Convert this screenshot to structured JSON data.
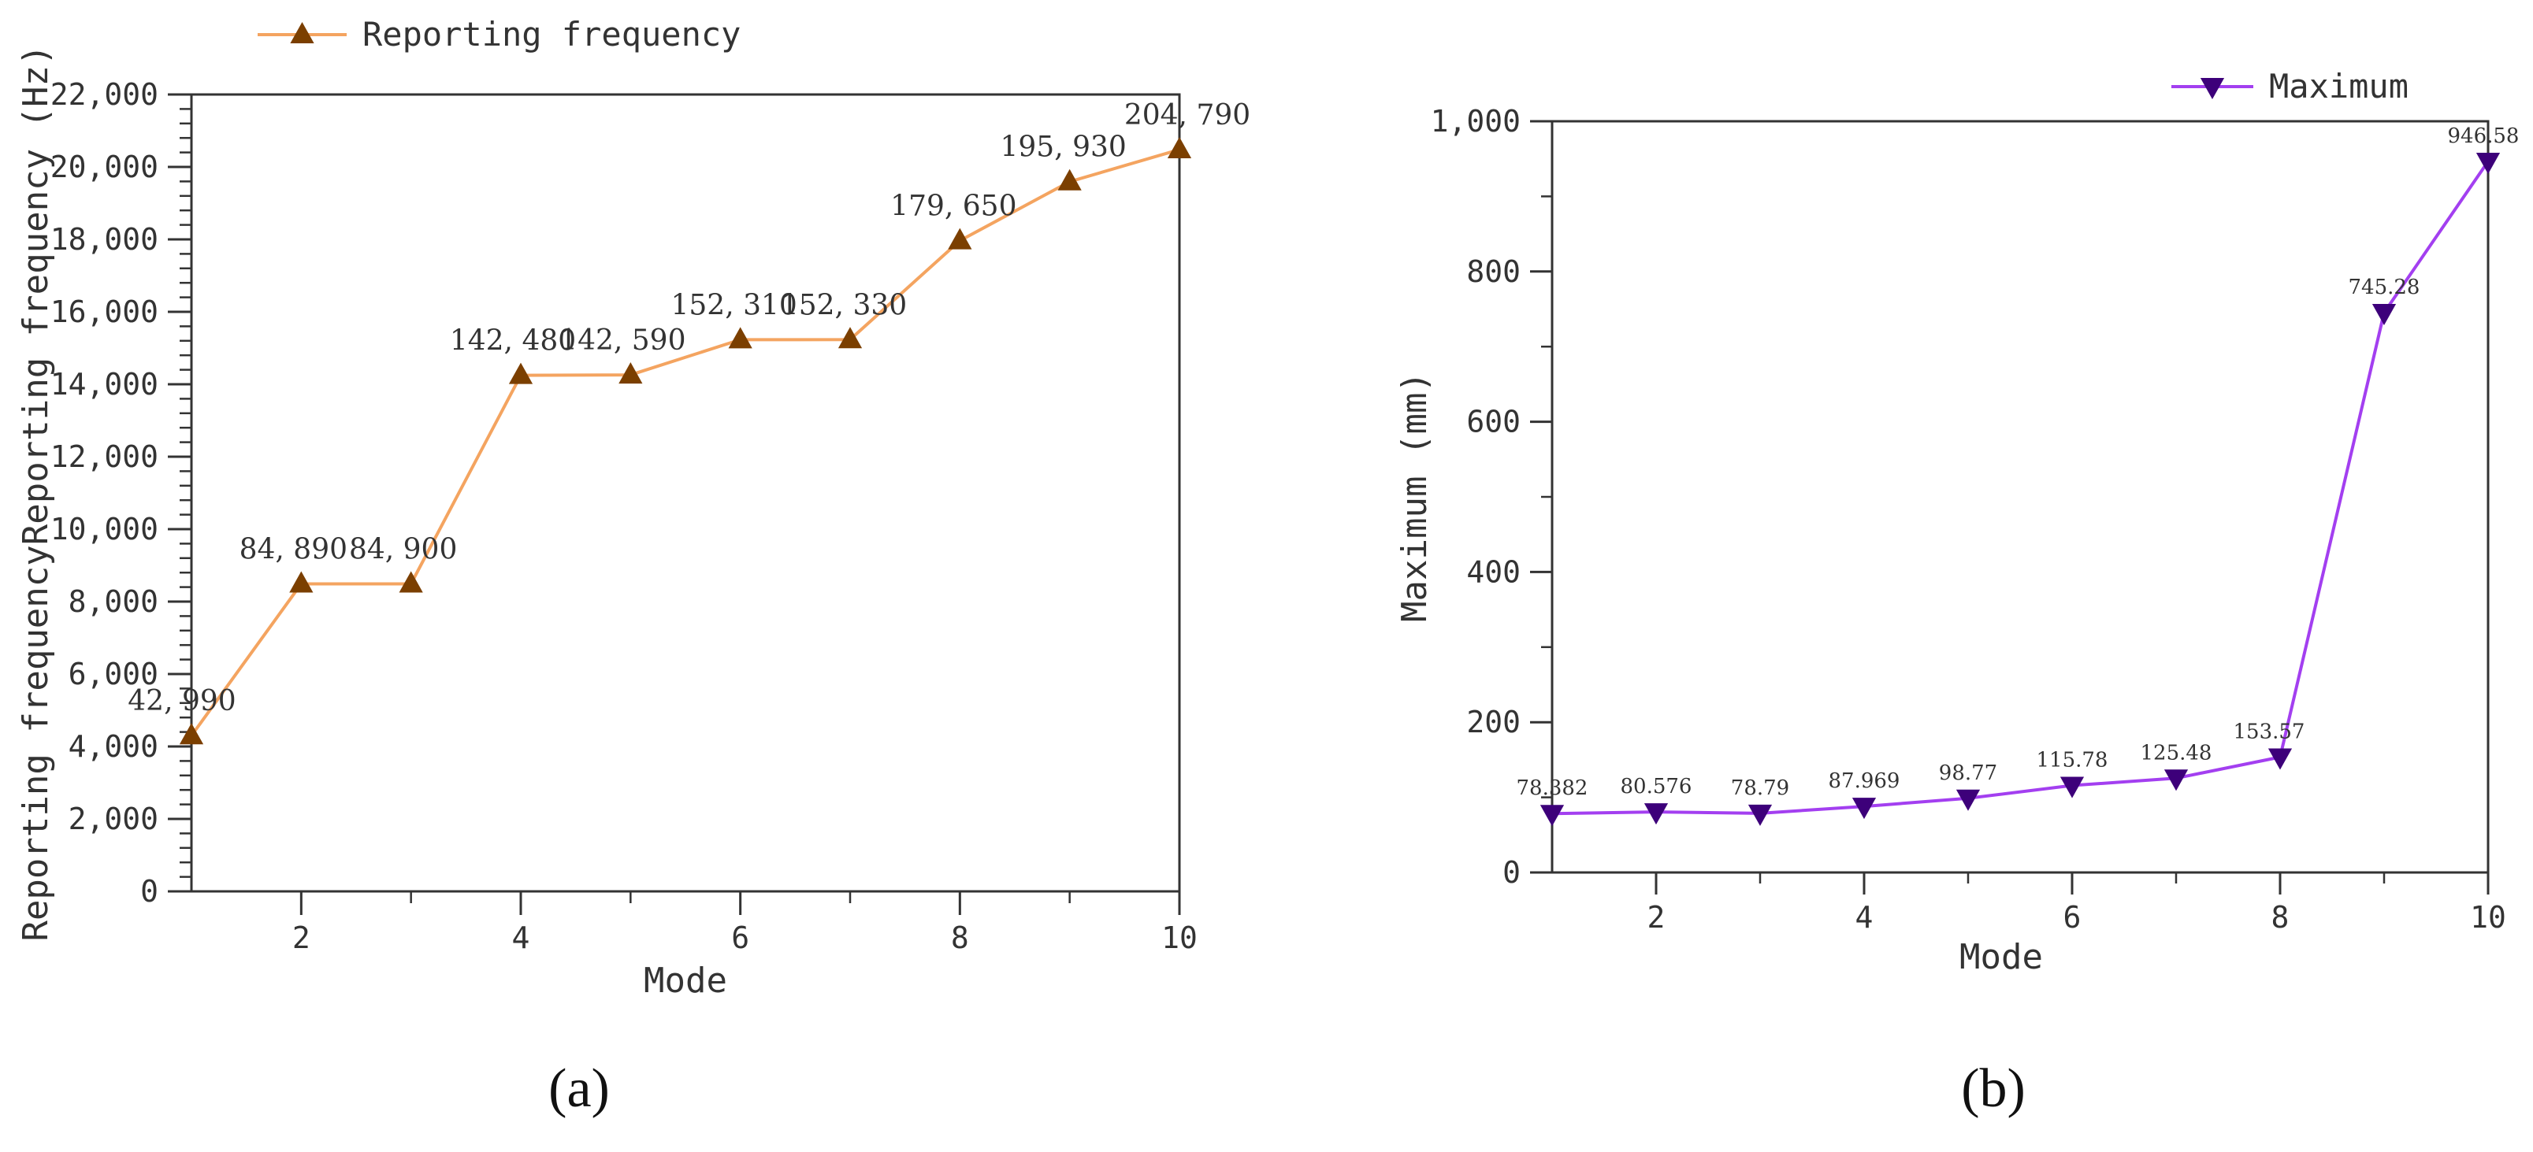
{
  "chart_data": [
    {
      "panel": "(a)",
      "type": "line",
      "xlabel": "Mode",
      "ylabel": "Reporting frequencyReporting frequency (Hz)",
      "xlim": [
        1,
        10
      ],
      "ylim": [
        0,
        22000
      ],
      "xticks": [
        "2",
        "4",
        "6",
        "8",
        "10"
      ],
      "yticks": [
        "0",
        "2,000",
        "4,000",
        "6,000",
        "8,000",
        "10,000",
        "12,000",
        "14,000",
        "16,000",
        "18,000",
        "20,000",
        "22,000"
      ],
      "grid": false,
      "legend_position": "top-left",
      "color": "#f4a460",
      "marker_color": "#7b3f00",
      "marker": "triangle-up",
      "series": [
        {
          "name": "Reporting frequency",
          "x": [
            1,
            2,
            3,
            4,
            5,
            6,
            7,
            8,
            9,
            10
          ],
          "values": [
            4299,
            8489,
            8490,
            14248,
            14259,
            15231,
            15233,
            17965,
            19593,
            20479
          ],
          "labels": [
            "42, 990",
            "84, 890",
            "84, 900",
            "142, 480",
            "142, 590",
            "152, 310",
            "152, 330",
            "179, 650",
            "195, 930",
            "204, 790"
          ]
        }
      ]
    },
    {
      "panel": "(b)",
      "type": "line",
      "xlabel": "Mode",
      "ylabel": "Maximum (mm)",
      "xlim": [
        1,
        10
      ],
      "ylim": [
        0,
        1000
      ],
      "xticks": [
        "2",
        "4",
        "6",
        "8",
        "10"
      ],
      "yticks": [
        "0",
        "200",
        "400",
        "600",
        "800",
        "1,000"
      ],
      "grid": false,
      "legend_position": "top-right",
      "color": "#a33ff0",
      "marker_color": "#3d007a",
      "marker": "triangle-down",
      "series": [
        {
          "name": "Maximum",
          "x": [
            1,
            2,
            3,
            4,
            5,
            6,
            7,
            8,
            9,
            10
          ],
          "values": [
            78.382,
            80.576,
            78.79,
            87.969,
            98.77,
            115.78,
            125.48,
            153.57,
            745.28,
            946.58
          ],
          "labels": [
            "78.382",
            "80.576",
            "78.79",
            "87.969",
            "98.77",
            "115.78",
            "125.48",
            "153.57",
            "745.28",
            "946.58"
          ]
        }
      ]
    }
  ]
}
